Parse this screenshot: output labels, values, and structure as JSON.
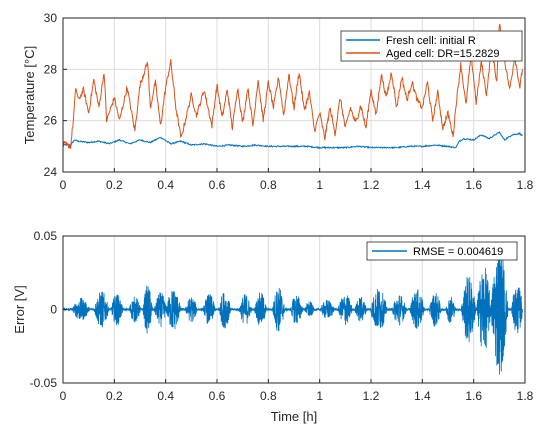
{
  "chart_data": [
    {
      "type": "line",
      "xlim": [
        0,
        1.8
      ],
      "ylim": [
        24,
        30
      ],
      "xticks": [
        "0",
        "0.2",
        "0.4",
        "0.6",
        "0.8",
        "1",
        "1.2",
        "1.4",
        "1.6",
        "1.8"
      ],
      "yticks": [
        "24",
        "26",
        "28",
        "30"
      ],
      "xlabel": "",
      "ylabel": "Temperature [°C]",
      "grid": true,
      "legend_position": "top-right",
      "series": [
        {
          "name": "Fresh cell: initial R",
          "color": "#0072BD",
          "x": [
            0,
            0.03,
            0.045,
            0.06,
            0.1,
            0.14,
            0.18,
            0.22,
            0.26,
            0.3,
            0.34,
            0.38,
            0.42,
            0.46,
            0.5,
            0.55,
            0.6,
            0.65,
            0.7,
            0.75,
            0.8,
            0.85,
            0.9,
            0.95,
            1.0,
            1.05,
            1.1,
            1.15,
            1.2,
            1.25,
            1.3,
            1.35,
            1.4,
            1.45,
            1.5,
            1.53,
            1.545,
            1.56,
            1.6,
            1.63,
            1.66,
            1.7,
            1.72,
            1.75,
            1.78,
            1.79
          ],
          "y": [
            25.05,
            25.05,
            25.25,
            25.2,
            25.15,
            25.2,
            25.1,
            25.25,
            25.1,
            25.25,
            25.15,
            25.35,
            25.1,
            25.2,
            25.05,
            25.1,
            25.0,
            25.05,
            25.0,
            25.05,
            25.0,
            25.0,
            25.0,
            25.0,
            24.95,
            24.95,
            24.95,
            25.0,
            24.95,
            24.95,
            24.95,
            25.0,
            25.0,
            25.05,
            25.0,
            24.95,
            25.2,
            25.3,
            25.25,
            25.45,
            25.3,
            25.55,
            25.25,
            25.45,
            25.5,
            25.4
          ]
        },
        {
          "name": "Aged cell: DR=15.2829",
          "color": "#D95319",
          "x": [
            0,
            0.03,
            0.04,
            0.05,
            0.06,
            0.08,
            0.1,
            0.12,
            0.14,
            0.16,
            0.17,
            0.2,
            0.22,
            0.25,
            0.28,
            0.3,
            0.33,
            0.34,
            0.36,
            0.38,
            0.4,
            0.42,
            0.44,
            0.46,
            0.5,
            0.52,
            0.55,
            0.58,
            0.6,
            0.62,
            0.64,
            0.66,
            0.68,
            0.7,
            0.72,
            0.74,
            0.76,
            0.78,
            0.8,
            0.82,
            0.84,
            0.86,
            0.88,
            0.9,
            0.92,
            0.94,
            0.96,
            0.98,
            1.0,
            1.02,
            1.04,
            1.06,
            1.08,
            1.1,
            1.12,
            1.14,
            1.16,
            1.18,
            1.2,
            1.22,
            1.24,
            1.26,
            1.28,
            1.3,
            1.32,
            1.34,
            1.36,
            1.38,
            1.4,
            1.42,
            1.44,
            1.46,
            1.48,
            1.5,
            1.52,
            1.53,
            1.55,
            1.57,
            1.59,
            1.61,
            1.63,
            1.65,
            1.67,
            1.69,
            1.7,
            1.72,
            1.74,
            1.76,
            1.78,
            1.79
          ],
          "y": [
            25.1,
            25.0,
            26.0,
            27.3,
            26.8,
            27.2,
            26.3,
            27.6,
            26.5,
            27.9,
            26.0,
            26.9,
            26.0,
            27.3,
            25.6,
            27.4,
            28.3,
            26.5,
            27.5,
            25.8,
            27.3,
            28.3,
            26.5,
            25.3,
            27.0,
            26.2,
            27.2,
            25.8,
            27.4,
            26.1,
            27.2,
            25.7,
            27.3,
            25.9,
            27.3,
            25.8,
            27.6,
            26.0,
            27.5,
            26.5,
            27.7,
            26.2,
            27.8,
            26.5,
            27.9,
            26.4,
            27.1,
            25.6,
            26.3,
            25.3,
            26.5,
            25.5,
            26.9,
            25.7,
            26.5,
            25.9,
            26.6,
            25.7,
            27.2,
            26.2,
            27.8,
            26.9,
            27.9,
            26.5,
            27.7,
            26.8,
            27.5,
            26.8,
            26.5,
            27.5,
            26.0,
            27.1,
            25.7,
            26.3,
            25.4,
            26.5,
            28.2,
            26.6,
            28.6,
            26.7,
            28.3,
            27.0,
            28.9,
            27.5,
            29.8,
            28.4,
            27.2,
            28.5,
            27.3,
            28.0
          ]
        }
      ]
    },
    {
      "type": "line",
      "xlim": [
        0,
        1.8
      ],
      "ylim": [
        -0.05,
        0.05
      ],
      "xticks": [
        "0",
        "0.2",
        "0.4",
        "0.6",
        "0.8",
        "1",
        "1.2",
        "1.4",
        "1.6",
        "1.8"
      ],
      "yticks": [
        "-0.05",
        "0",
        "0.05"
      ],
      "xlabel": "Time [h]",
      "ylabel": "Error [V]",
      "grid": true,
      "legend_position": "top-right",
      "series": [
        {
          "name": "RMSE = 0.004619",
          "color": "#0072BD",
          "bursts": [
            {
              "center": 0.07,
              "width": 0.035,
              "amp": 0.008
            },
            {
              "center": 0.15,
              "width": 0.03,
              "amp": 0.013
            },
            {
              "center": 0.21,
              "width": 0.025,
              "amp": 0.011
            },
            {
              "center": 0.28,
              "width": 0.025,
              "amp": 0.009
            },
            {
              "center": 0.33,
              "width": 0.02,
              "amp": 0.017
            },
            {
              "center": 0.38,
              "width": 0.025,
              "amp": 0.012
            },
            {
              "center": 0.43,
              "width": 0.03,
              "amp": 0.015
            },
            {
              "center": 0.5,
              "width": 0.025,
              "amp": 0.009
            },
            {
              "center": 0.57,
              "width": 0.025,
              "amp": 0.011
            },
            {
              "center": 0.63,
              "width": 0.025,
              "amp": 0.013
            },
            {
              "center": 0.71,
              "width": 0.025,
              "amp": 0.011
            },
            {
              "center": 0.77,
              "width": 0.025,
              "amp": 0.012
            },
            {
              "center": 0.84,
              "width": 0.025,
              "amp": 0.016
            },
            {
              "center": 0.91,
              "width": 0.025,
              "amp": 0.011
            },
            {
              "center": 0.96,
              "width": 0.02,
              "amp": 0.006
            },
            {
              "center": 1.03,
              "width": 0.03,
              "amp": 0.007
            },
            {
              "center": 1.1,
              "width": 0.03,
              "amp": 0.011
            },
            {
              "center": 1.16,
              "width": 0.025,
              "amp": 0.009
            },
            {
              "center": 1.23,
              "width": 0.035,
              "amp": 0.015
            },
            {
              "center": 1.31,
              "width": 0.03,
              "amp": 0.011
            },
            {
              "center": 1.38,
              "width": 0.03,
              "amp": 0.014
            },
            {
              "center": 1.45,
              "width": 0.025,
              "amp": 0.012
            },
            {
              "center": 1.51,
              "width": 0.02,
              "amp": 0.01
            },
            {
              "center": 1.58,
              "width": 0.03,
              "amp": 0.024
            },
            {
              "center": 1.64,
              "width": 0.03,
              "amp": 0.03
            },
            {
              "center": 1.7,
              "width": 0.035,
              "amp": 0.045
            },
            {
              "center": 1.77,
              "width": 0.025,
              "amp": 0.017
            }
          ]
        }
      ]
    }
  ]
}
